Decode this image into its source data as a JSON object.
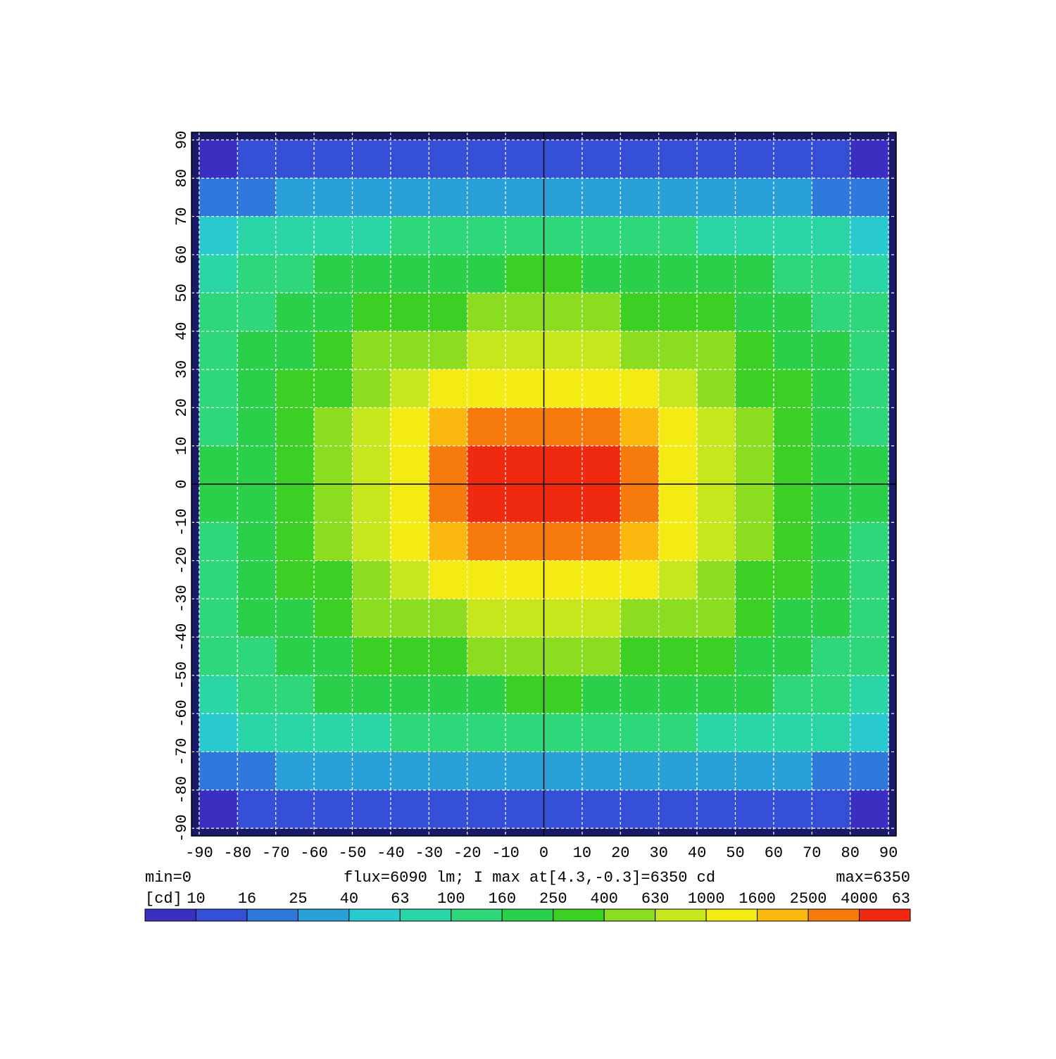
{
  "chart_data": {
    "type": "heatmap",
    "info_left": "min=0",
    "info_center": "flux=6090 lm; I max at[4.3,-0.3]=6350 cd",
    "info_right": "max=6350",
    "x": [
      -85,
      -75,
      -65,
      -55,
      -45,
      -35,
      -25,
      -15,
      -5,
      5,
      15,
      25,
      35,
      45,
      55,
      65,
      75,
      85
    ],
    "y": [
      85,
      75,
      65,
      55,
      45,
      35,
      25,
      15,
      5,
      -5,
      -15,
      -25,
      -35,
      -45,
      -55,
      -65,
      -75,
      -85
    ],
    "z": [
      [
        9,
        10,
        10,
        11,
        11,
        11,
        12,
        12,
        12,
        12,
        12,
        12,
        11,
        11,
        11,
        10,
        10,
        9
      ],
      [
        20,
        22,
        25,
        27,
        28,
        28,
        30,
        30,
        30,
        30,
        30,
        30,
        28,
        28,
        27,
        25,
        22,
        20
      ],
      [
        55,
        70,
        80,
        90,
        95,
        100,
        105,
        110,
        110,
        110,
        110,
        105,
        100,
        95,
        90,
        80,
        70,
        55
      ],
      [
        90,
        120,
        150,
        175,
        200,
        220,
        235,
        245,
        250,
        250,
        245,
        235,
        220,
        200,
        175,
        150,
        120,
        90
      ],
      [
        110,
        150,
        190,
        240,
        290,
        340,
        380,
        410,
        420,
        420,
        410,
        380,
        340,
        290,
        240,
        190,
        150,
        110
      ],
      [
        130,
        180,
        230,
        310,
        400,
        500,
        600,
        680,
        700,
        700,
        680,
        600,
        500,
        400,
        310,
        230,
        180,
        130
      ],
      [
        140,
        200,
        270,
        380,
        520,
        750,
        1000,
        1200,
        1300,
        1300,
        1200,
        1000,
        750,
        520,
        380,
        270,
        200,
        140
      ],
      [
        150,
        210,
        300,
        450,
        700,
        1100,
        1800,
        2600,
        3000,
        3000,
        2600,
        1800,
        1100,
        700,
        450,
        300,
        210,
        150
      ],
      [
        160,
        220,
        320,
        500,
        800,
        1500,
        3000,
        5000,
        6000,
        6000,
        5000,
        3000,
        1500,
        800,
        500,
        320,
        220,
        160
      ],
      [
        160,
        220,
        320,
        500,
        800,
        1500,
        3000,
        5000,
        6000,
        6000,
        5000,
        3000,
        1500,
        800,
        500,
        320,
        220,
        160
      ],
      [
        150,
        210,
        300,
        450,
        700,
        1100,
        1800,
        2600,
        3000,
        3000,
        2600,
        1800,
        1100,
        700,
        450,
        300,
        210,
        150
      ],
      [
        140,
        200,
        270,
        380,
        520,
        750,
        1000,
        1200,
        1300,
        1300,
        1200,
        1000,
        750,
        520,
        380,
        270,
        200,
        140
      ],
      [
        130,
        180,
        230,
        310,
        400,
        500,
        600,
        680,
        700,
        700,
        680,
        600,
        500,
        400,
        310,
        230,
        180,
        130
      ],
      [
        110,
        150,
        190,
        240,
        290,
        340,
        380,
        410,
        420,
        420,
        410,
        380,
        340,
        290,
        240,
        190,
        150,
        110
      ],
      [
        90,
        120,
        150,
        175,
        200,
        220,
        235,
        245,
        250,
        250,
        245,
        235,
        220,
        200,
        175,
        150,
        120,
        90
      ],
      [
        55,
        70,
        80,
        90,
        95,
        100,
        105,
        110,
        110,
        110,
        110,
        105,
        100,
        95,
        90,
        80,
        70,
        55
      ],
      [
        20,
        22,
        25,
        27,
        28,
        28,
        30,
        30,
        30,
        30,
        30,
        30,
        28,
        28,
        27,
        25,
        22,
        20
      ],
      [
        9,
        10,
        10,
        11,
        11,
        11,
        12,
        12,
        12,
        12,
        12,
        12,
        11,
        11,
        11,
        10,
        10,
        9
      ]
    ],
    "xlim": [
      -92,
      92
    ],
    "ylim": [
      -92,
      92
    ],
    "xticks": [
      -90,
      -80,
      -70,
      -60,
      -50,
      -40,
      -30,
      -20,
      -10,
      0,
      10,
      20,
      30,
      40,
      50,
      60,
      70,
      80,
      90
    ],
    "yticks": [
      -90,
      -80,
      -70,
      -60,
      -50,
      -40,
      -30,
      -20,
      -10,
      0,
      10,
      20,
      30,
      40,
      50,
      60,
      70,
      80,
      90
    ],
    "grid": true,
    "colorbar": {
      "unit": "[cd]",
      "levels": [
        10,
        16,
        25,
        40,
        63,
        100,
        160,
        250,
        400,
        630,
        1000,
        1600,
        2500,
        4000
      ],
      "end_label": "63",
      "colors": [
        "#3a2fc0",
        "#3550d6",
        "#2f78dc",
        "#2aa0d8",
        "#28c9cf",
        "#2bd6a6",
        "#2ed77a",
        "#2ad04a",
        "#3cd024",
        "#8cdc20",
        "#c8e61c",
        "#f4ea14",
        "#fbb80e",
        "#f67a0c",
        "#f02a10"
      ]
    }
  }
}
